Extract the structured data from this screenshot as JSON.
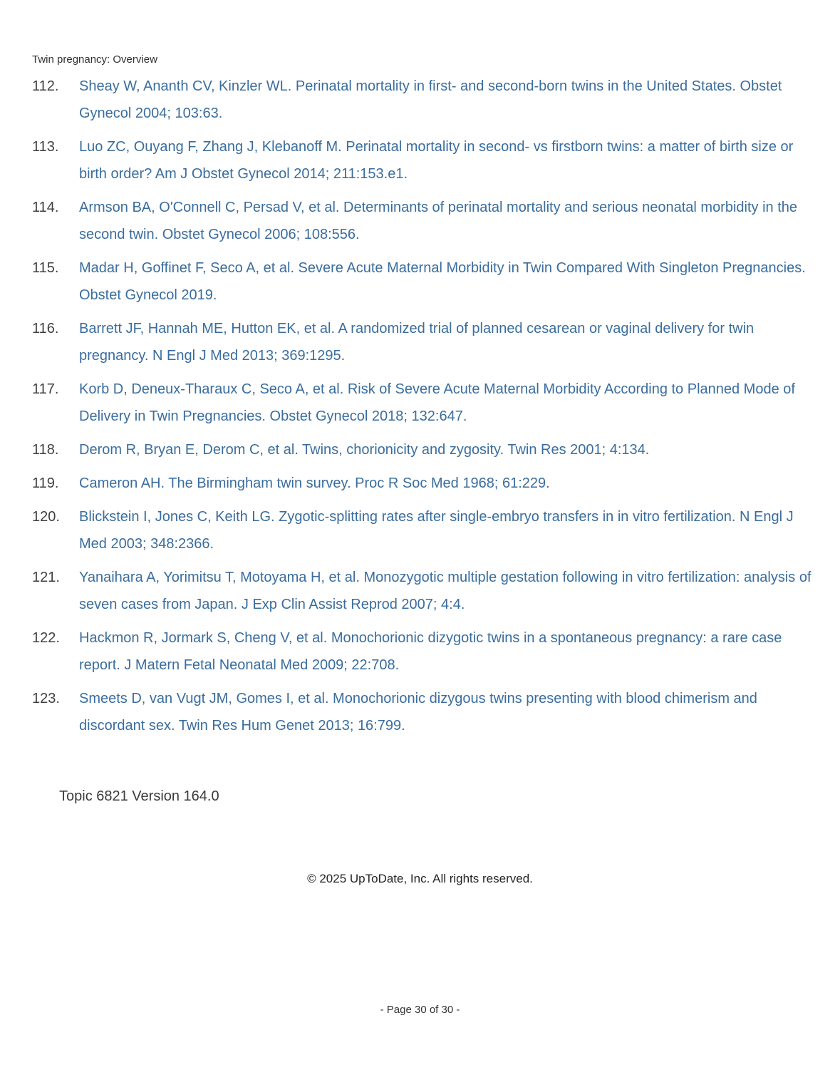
{
  "page": {
    "header": "Twin pregnancy: Overview",
    "topic_version": "Topic 6821 Version 164.0",
    "copyright": "© 2025 UpToDate, Inc. All rights reserved.",
    "page_indicator": "- Page 30 of 30 -"
  },
  "colors": {
    "reference_link_blue": "#3a6d9e",
    "body_text_dark": "#3f3f3f"
  },
  "references": [
    {
      "number": "112.",
      "text": "Sheay W, Ananth CV, Kinzler WL. Perinatal mortality in first- and second-born twins in the United States. Obstet Gynecol 2004; 103:63."
    },
    {
      "number": "113.",
      "text": "Luo ZC, Ouyang F, Zhang J, Klebanoff M. Perinatal mortality in second- vs firstborn twins: a matter of birth size or birth order? Am J Obstet Gynecol 2014; 211:153.e1."
    },
    {
      "number": "114.",
      "text": "Armson BA, O'Connell C, Persad V, et al. Determinants of perinatal mortality and serious neonatal morbidity in the second twin. Obstet Gynecol 2006; 108:556."
    },
    {
      "number": "115.",
      "text": "Madar H, Goffinet F, Seco A, et al. Severe Acute Maternal Morbidity in Twin Compared With Singleton Pregnancies. Obstet Gynecol 2019."
    },
    {
      "number": "116.",
      "text": "Barrett JF, Hannah ME, Hutton EK, et al. A randomized trial of planned cesarean or vaginal delivery for twin pregnancy. N Engl J Med 2013; 369:1295."
    },
    {
      "number": "117.",
      "text": "Korb D, Deneux-Tharaux C, Seco A, et al. Risk of Severe Acute Maternal Morbidity According to Planned Mode of Delivery in Twin Pregnancies. Obstet Gynecol 2018; 132:647."
    },
    {
      "number": "118.",
      "text": "Derom R, Bryan E, Derom C, et al. Twins, chorionicity and zygosity. Twin Res 2001; 4:134."
    },
    {
      "number": "119.",
      "text": "Cameron AH. The Birmingham twin survey. Proc R Soc Med 1968; 61:229."
    },
    {
      "number": "120.",
      "text": "Blickstein I, Jones C, Keith LG. Zygotic-splitting rates after single-embryo transfers in in vitro fertilization. N Engl J Med 2003; 348:2366."
    },
    {
      "number": "121.",
      "text": "Yanaihara A, Yorimitsu T, Motoyama H, et al. Monozygotic multiple gestation following in vitro fertilization: analysis of seven cases from Japan. J Exp Clin Assist Reprod 2007; 4:4."
    },
    {
      "number": "122.",
      "text": "Hackmon R, Jormark S, Cheng V, et al. Monochorionic dizygotic twins in a spontaneous pregnancy: a rare case report. J Matern Fetal Neonatal Med 2009; 22:708."
    },
    {
      "number": "123.",
      "text": "Smeets D, van Vugt JM, Gomes I, et al. Monochorionic dizygous twins presenting with blood chimerism and discordant sex. Twin Res Hum Genet 2013; 16:799."
    }
  ]
}
